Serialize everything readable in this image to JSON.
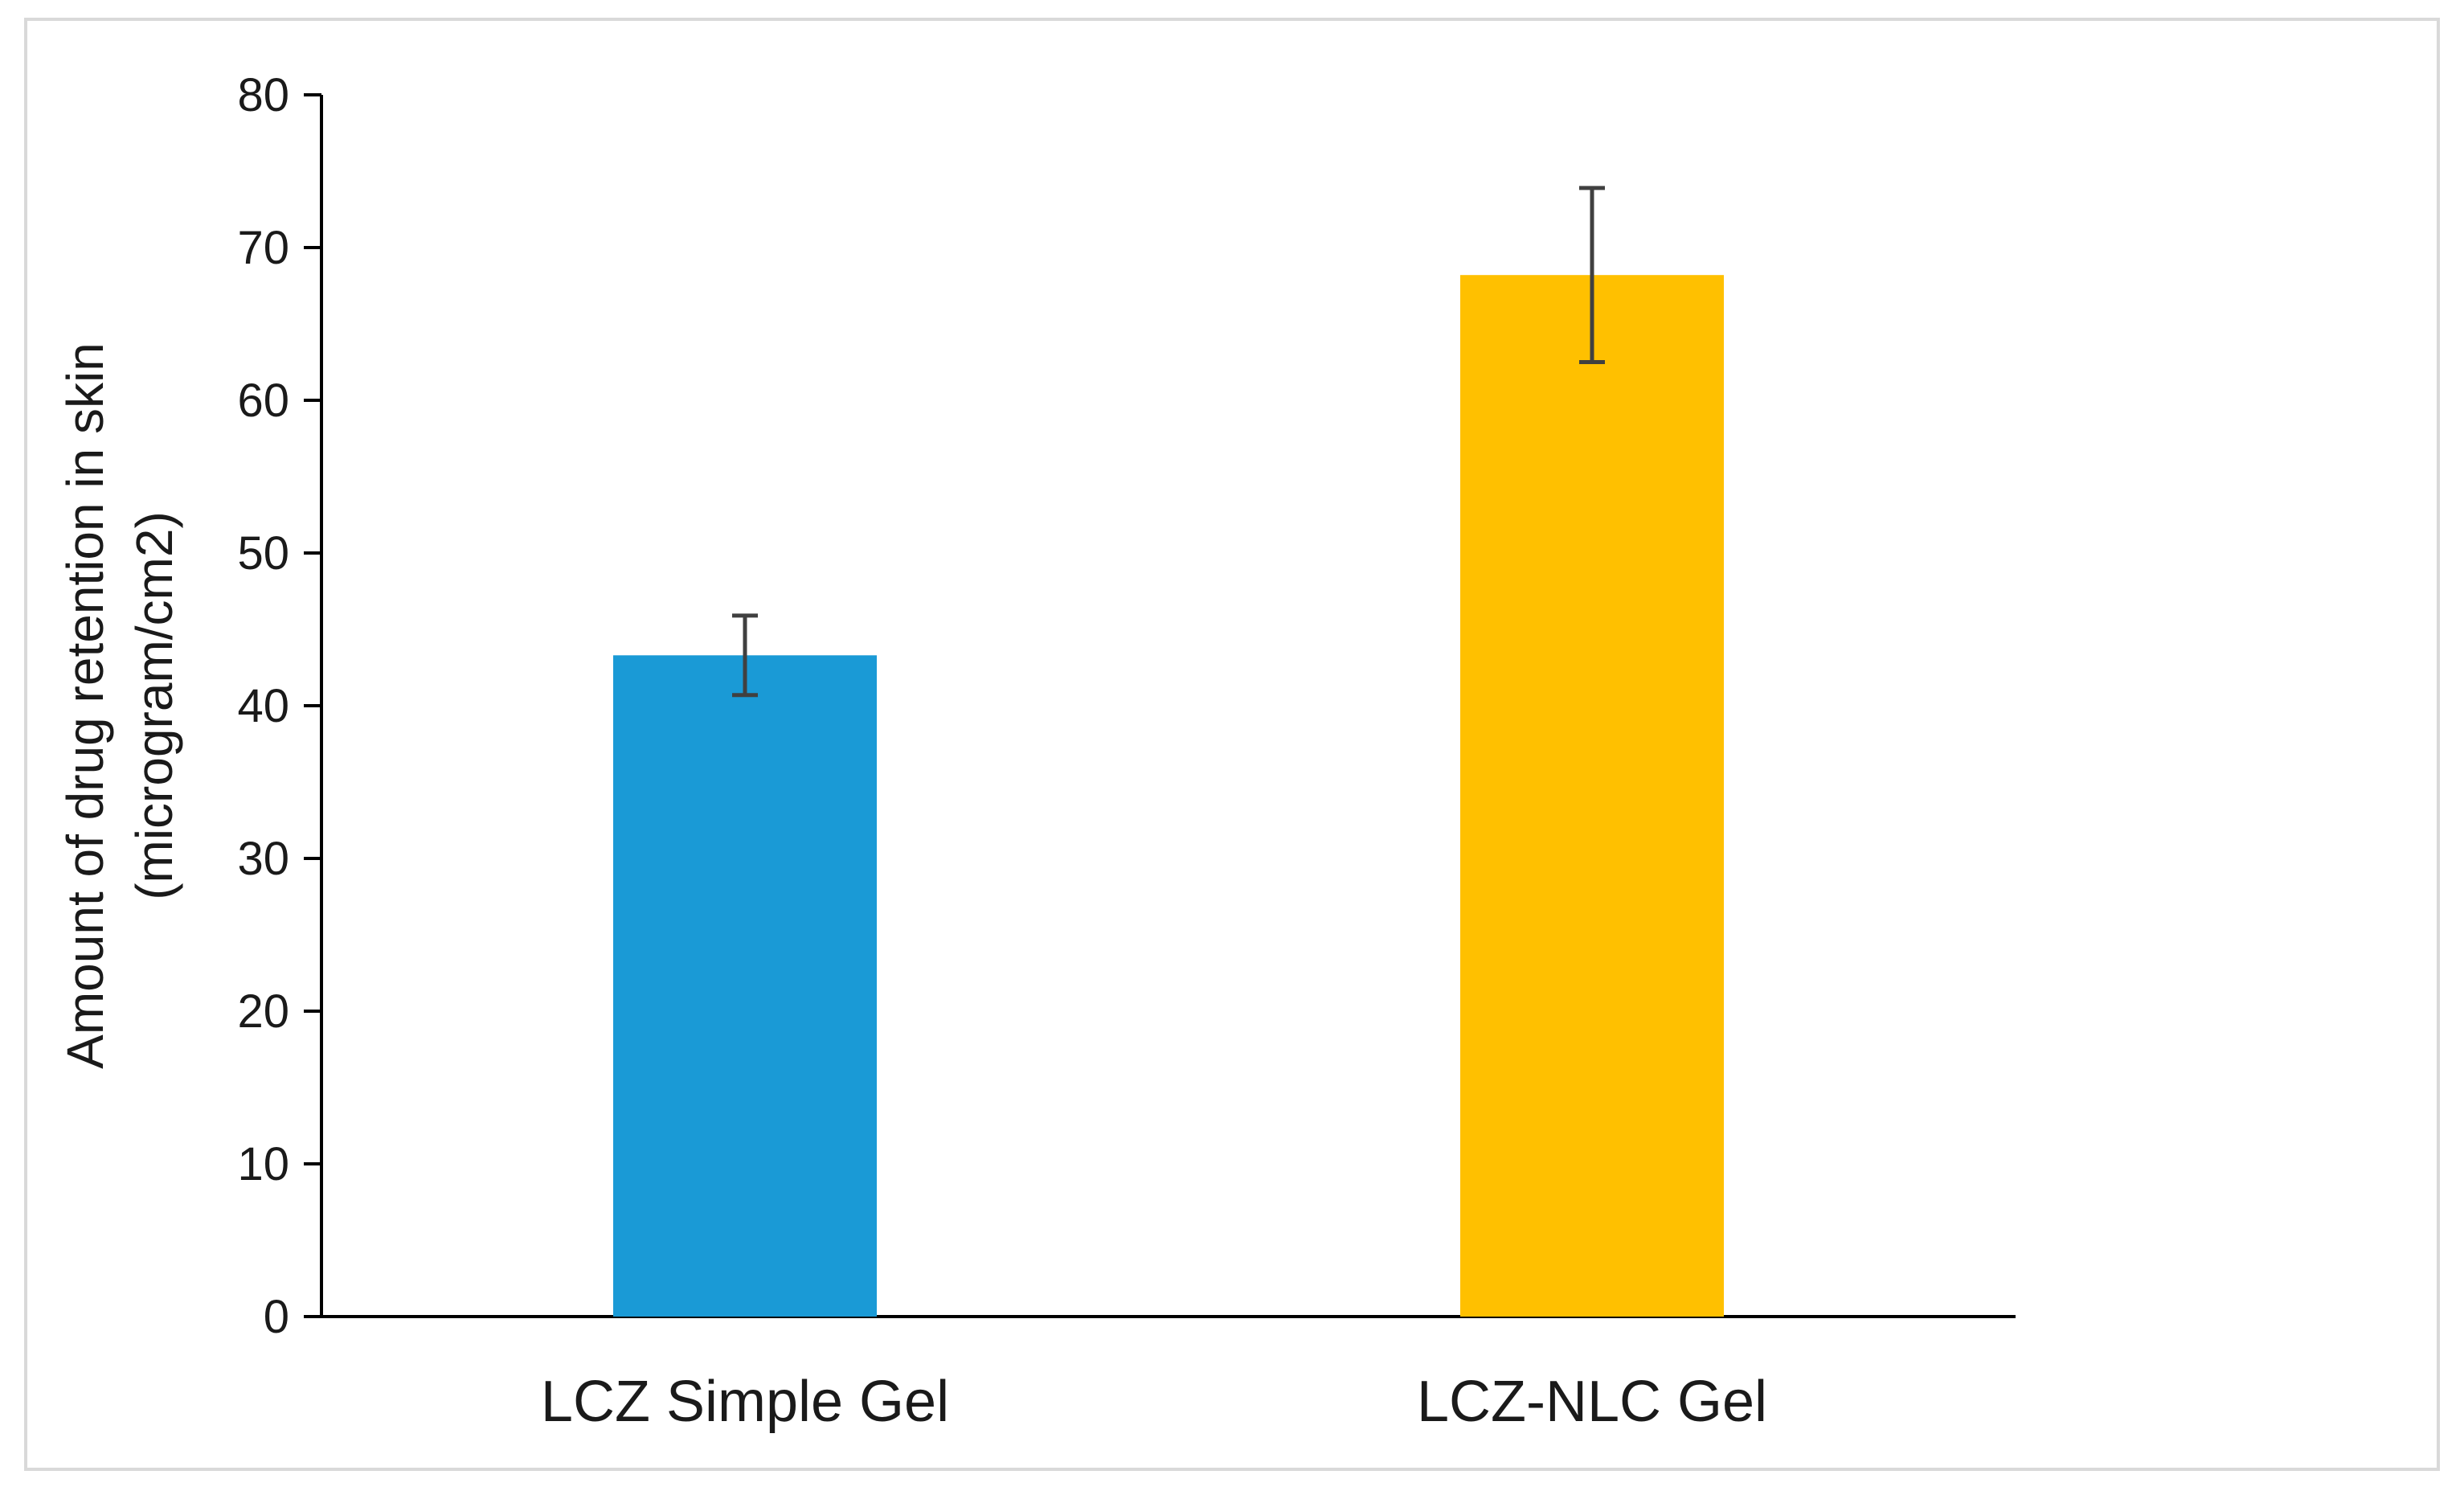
{
  "chart_data": {
    "type": "bar",
    "title": "",
    "xlabel": "",
    "ylabel_lines": [
      "Amount of drug retention in skin",
      "(microgram/cm2)"
    ],
    "categories": [
      "LCZ Simple Gel",
      "LCZ-NLC Gel"
    ],
    "values": [
      43.3,
      68.2
    ],
    "error": [
      2.6,
      5.7
    ],
    "colors": [
      "#1a9ad6",
      "#ffc000"
    ],
    "error_color": "#404040",
    "ylim": [
      0,
      80
    ],
    "yticks": [
      0,
      10,
      20,
      30,
      40,
      50,
      60,
      70,
      80
    ],
    "grid": false,
    "legend": "none"
  }
}
